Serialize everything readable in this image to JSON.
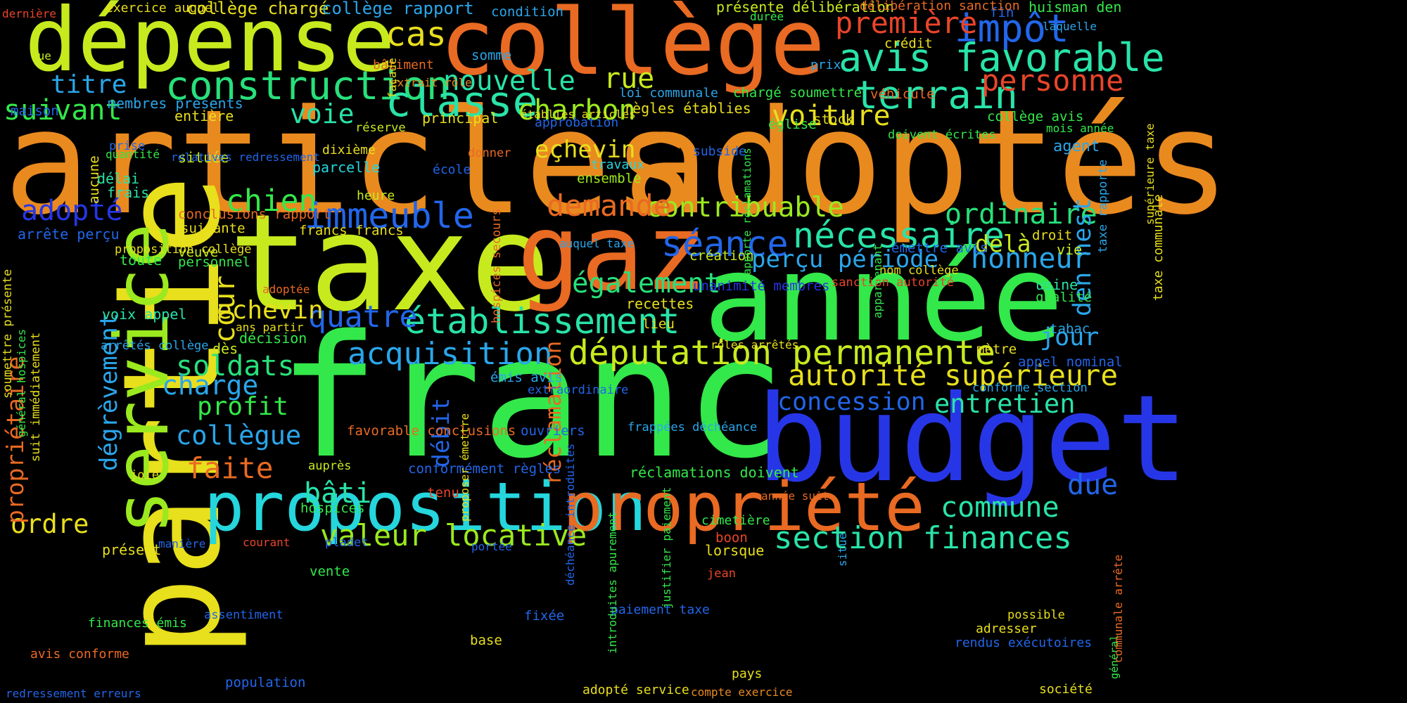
{
  "palette": {
    "orange": "#e98a1f",
    "deep_orange": "#e96a22",
    "red_orange": "#e9452a",
    "yellow": "#e8df1d",
    "yellow_green": "#c7ea1e",
    "lime": "#9be91f",
    "green": "#33e84a",
    "spring": "#28e07a",
    "teal": "#29e3a8",
    "cyan": "#25d6dd",
    "sky": "#2aa6ea",
    "blue": "#2266ea",
    "deep_blue": "#2636e6"
  },
  "words": [
    {
      "text": "franc",
      "color": "green"
    },
    {
      "text": "articles",
      "color": "orange"
    },
    {
      "text": "adoptés",
      "color": "orange"
    },
    {
      "text": "taxe",
      "color": "yellow_green"
    },
    {
      "text": "année",
      "color": "green"
    },
    {
      "text": "partie",
      "color": "yellow"
    },
    {
      "text": "budget",
      "color": "deep_blue"
    },
    {
      "text": "gaz",
      "color": "deep_orange"
    },
    {
      "text": "collège",
      "color": "deep_orange"
    },
    {
      "text": "dépense",
      "color": "yellow_green"
    },
    {
      "text": "service",
      "color": "lime"
    },
    {
      "text": "proposition",
      "color": "cyan"
    },
    {
      "text": "propriété",
      "color": "deep_orange"
    },
    {
      "text": "construction",
      "color": "spring"
    },
    {
      "text": "terrain",
      "color": "teal"
    },
    {
      "text": "classe",
      "color": "teal"
    },
    {
      "text": "avis favorable",
      "color": "teal"
    },
    {
      "text": "impôt",
      "color": "blue"
    },
    {
      "text": "députation permanente",
      "color": "yellow_green"
    },
    {
      "text": "établissement",
      "color": "teal"
    },
    {
      "text": "nécessaire",
      "color": "teal"
    },
    {
      "text": "séance",
      "color": "blue"
    },
    {
      "text": "immeuble",
      "color": "blue"
    },
    {
      "text": "acquisition",
      "color": "sky"
    },
    {
      "text": "section finances",
      "color": "teal"
    },
    {
      "text": "valeur locative",
      "color": "lime"
    },
    {
      "text": "autorité supérieure",
      "color": "yellow"
    },
    {
      "text": "contribuable",
      "color": "lime"
    },
    {
      "text": "demande",
      "color": "deep_orange"
    },
    {
      "text": "première",
      "color": "red_orange"
    },
    {
      "text": "personne",
      "color": "red_orange"
    },
    {
      "text": "voiture",
      "color": "yellow"
    },
    {
      "text": "charbon",
      "color": "lime"
    },
    {
      "text": "nouvelle",
      "color": "teal"
    },
    {
      "text": "rue",
      "color": "yellow_green"
    },
    {
      "text": "cas",
      "color": "yellow"
    },
    {
      "text": "suivant",
      "color": "green"
    },
    {
      "text": "titre",
      "color": "sky"
    },
    {
      "text": "voie",
      "color": "teal"
    },
    {
      "text": "adopté",
      "color": "deep_blue"
    },
    {
      "text": "chien",
      "color": "green"
    },
    {
      "text": "ordinaire",
      "color": "spring"
    },
    {
      "text": "honneur",
      "color": "sky"
    },
    {
      "text": "perçu période",
      "color": "sky"
    },
    {
      "text": "également",
      "color": "spring"
    },
    {
      "text": "quatre",
      "color": "blue"
    },
    {
      "text": "echevin",
      "color": "yellow"
    },
    {
      "text": "soldats",
      "color": "spring"
    },
    {
      "text": "charge",
      "color": "sky"
    },
    {
      "text": "profit",
      "color": "green"
    },
    {
      "text": "collègue",
      "color": "sky"
    },
    {
      "text": "faite",
      "color": "deep_orange"
    },
    {
      "text": "bâti",
      "color": "teal"
    },
    {
      "text": "commune",
      "color": "teal"
    },
    {
      "text": "concession",
      "color": "blue"
    },
    {
      "text": "entretien",
      "color": "teal"
    },
    {
      "text": "jour",
      "color": "sky"
    },
    {
      "text": "due",
      "color": "blue"
    },
    {
      "text": "ordre",
      "color": "yellow"
    },
    {
      "text": "cour",
      "color": "yellow"
    },
    {
      "text": "dégrèvement",
      "color": "sky"
    },
    {
      "text": "propriétaire",
      "color": "deep_orange"
    },
    {
      "text": "den nest",
      "color": "sky"
    },
    {
      "text": "réclamation",
      "color": "deep_orange"
    },
    {
      "text": "débit",
      "color": "blue"
    },
    {
      "text": "delà",
      "color": "yellow_green"
    },
    {
      "text": "eçhevin",
      "color": "yellow"
    },
    {
      "text": "collège chargé",
      "color": "yellow"
    },
    {
      "text": "collège rapport",
      "color": "sky"
    },
    {
      "text": "membres présents",
      "color": "sky"
    },
    {
      "text": "entière",
      "color": "yellow"
    },
    {
      "text": "règles établies",
      "color": "yellow"
    },
    {
      "text": "loi communale",
      "color": "sky"
    },
    {
      "text": "principal",
      "color": "yellow"
    },
    {
      "text": "approbation",
      "color": "blue"
    },
    {
      "text": "conclusions rapport",
      "color": "deep_orange"
    },
    {
      "text": "francs francs",
      "color": "yellow"
    },
    {
      "text": "arrête perçu",
      "color": "blue"
    },
    {
      "text": "parcelle",
      "color": "cyan"
    },
    {
      "text": "travaux",
      "color": "cyan"
    },
    {
      "text": "ensemble",
      "color": "lime"
    },
    {
      "text": "école",
      "color": "blue"
    },
    {
      "text": "dixième",
      "color": "yellow"
    },
    {
      "text": "délai",
      "color": "teal"
    },
    {
      "text": "frais",
      "color": "teal"
    },
    {
      "text": "située",
      "color": "yellow_green"
    },
    {
      "text": "quantité",
      "color": "green"
    },
    {
      "text": "heure",
      "color": "yellow_green"
    },
    {
      "text": "suivante",
      "color": "yellow"
    },
    {
      "text": "toute",
      "color": "green"
    },
    {
      "text": "veuve",
      "color": "yellow_green"
    },
    {
      "text": "personnel",
      "color": "green"
    },
    {
      "text": "voix appel",
      "color": "teal"
    },
    {
      "text": "décision",
      "color": "green"
    },
    {
      "text": "dès",
      "color": "yellow_green"
    },
    {
      "text": "recettes",
      "color": "yellow"
    },
    {
      "text": "lieu",
      "color": "yellow"
    },
    {
      "text": "création",
      "color": "yellow_green"
    },
    {
      "text": "usine",
      "color": "teal"
    },
    {
      "text": "qualité",
      "color": "green"
    },
    {
      "text": "tabac",
      "color": "sky"
    },
    {
      "text": "mètre",
      "color": "yellow"
    },
    {
      "text": "appel nominal",
      "color": "blue"
    },
    {
      "text": "conforme section",
      "color": "sky"
    },
    {
      "text": "émettre avis",
      "color": "blue"
    },
    {
      "text": "vie",
      "color": "yellow_green"
    },
    {
      "text": "droit",
      "color": "yellow"
    },
    {
      "text": "agent",
      "color": "sky"
    },
    {
      "text": "mois année",
      "color": "green"
    },
    {
      "text": "crédit",
      "color": "yellow"
    },
    {
      "text": "huisman den",
      "color": "green"
    },
    {
      "text": "fin",
      "color": "blue"
    },
    {
      "text": "laquelle",
      "color": "sky"
    },
    {
      "text": "stock",
      "color": "yellow"
    },
    {
      "text": "église",
      "color": "green"
    },
    {
      "text": "véhicule",
      "color": "deep_orange"
    },
    {
      "text": "prix",
      "color": "sky"
    },
    {
      "text": "collège avis",
      "color": "green"
    },
    {
      "text": "doivent écrites",
      "color": "green"
    },
    {
      "text": "chargé soumettre",
      "color": "green"
    },
    {
      "text": "établies articles",
      "color": "yellow"
    },
    {
      "text": "subside",
      "color": "blue"
    },
    {
      "text": "somme",
      "color": "sky"
    },
    {
      "text": "bâtiment",
      "color": "deep_orange"
    },
    {
      "text": "extrait rôle",
      "color": "orange"
    },
    {
      "text": "condition",
      "color": "sky"
    },
    {
      "text": "exercice auquel",
      "color": "yellow"
    },
    {
      "text": "dernière",
      "color": "red_orange"
    },
    {
      "text": "présente délibération",
      "color": "yellow_green"
    },
    {
      "text": "délibération sanction",
      "color": "deep_orange"
    },
    {
      "text": "durée",
      "color": "green"
    },
    {
      "text": "vue",
      "color": "yellow_green"
    },
    {
      "text": "maison",
      "color": "blue"
    },
    {
      "text": "prise",
      "color": "blue"
    },
    {
      "text": "relatives redressement",
      "color": "blue"
    },
    {
      "text": "réserve",
      "color": "yellow_green"
    },
    {
      "text": "aucune",
      "color": "yellow"
    },
    {
      "text": "donner",
      "color": "deep_orange"
    },
    {
      "text": "proposition collège",
      "color": "yellow"
    },
    {
      "text": "auquel taxe",
      "color": "sky"
    },
    {
      "text": "adoptée",
      "color": "deep_orange"
    },
    {
      "text": "ans partir",
      "color": "yellow"
    },
    {
      "text": "arrêtés collège",
      "color": "sky"
    },
    {
      "text": "unanimité membres",
      "color": "deep_blue"
    },
    {
      "text": "sanction autorité",
      "color": "red_orange"
    },
    {
      "text": "nom collège",
      "color": "yellow"
    },
    {
      "text": "rôles arrêtés",
      "color": "yellow"
    },
    {
      "text": "émis avis",
      "color": "sky"
    },
    {
      "text": "extraordinaire",
      "color": "blue"
    },
    {
      "text": "favorable conclusions",
      "color": "deep_orange"
    },
    {
      "text": "ouvriers",
      "color": "blue"
    },
    {
      "text": "frappées déchéance",
      "color": "sky"
    },
    {
      "text": "réclamations doivent",
      "color": "green"
    },
    {
      "text": "conformément règles",
      "color": "blue"
    },
    {
      "text": "auprès",
      "color": "yellow_green"
    },
    {
      "text": "tenu",
      "color": "red_orange"
    },
    {
      "text": "hospices",
      "color": "green"
    },
    {
      "text": "joie",
      "color": "yellow"
    },
    {
      "text": "présent",
      "color": "yellow"
    },
    {
      "text": "manière",
      "color": "blue"
    },
    {
      "text": "courant",
      "color": "red_orange"
    },
    {
      "text": "pladet",
      "color": "blue"
    },
    {
      "text": "portée",
      "color": "blue"
    },
    {
      "text": "vente",
      "color": "green"
    },
    {
      "text": "année suit",
      "color": "deep_orange"
    },
    {
      "text": "cimetière",
      "color": "green"
    },
    {
      "text": "boon",
      "color": "red_orange"
    },
    {
      "text": "lorsque",
      "color": "yellow"
    },
    {
      "text": "jean",
      "color": "red_orange"
    },
    {
      "text": "finances émis",
      "color": "green"
    },
    {
      "text": "assentiment",
      "color": "blue"
    },
    {
      "text": "fixée",
      "color": "blue"
    },
    {
      "text": "paiement taxe",
      "color": "blue"
    },
    {
      "text": "base",
      "color": "yellow"
    },
    {
      "text": "avis conforme",
      "color": "deep_orange"
    },
    {
      "text": "population",
      "color": "blue"
    },
    {
      "text": "redressement erreurs",
      "color": "blue"
    },
    {
      "text": "pays",
      "color": "yellow"
    },
    {
      "text": "compte exercice",
      "color": "orange"
    },
    {
      "text": "adopté service",
      "color": "yellow"
    },
    {
      "text": "rendus exécutoires",
      "color": "blue"
    },
    {
      "text": "société",
      "color": "yellow"
    },
    {
      "text": "adresser",
      "color": "yellow"
    },
    {
      "text": "possible",
      "color": "yellow"
    },
    {
      "text": "soumettre présente",
      "color": "yellow"
    },
    {
      "text": "général hospices",
      "color": "green"
    },
    {
      "text": "suit immédiatement",
      "color": "yellow"
    },
    {
      "text": "façade",
      "color": "yellow"
    },
    {
      "text": "hospices secours",
      "color": "deep_orange"
    },
    {
      "text": "rapporte réclamations",
      "color": "green"
    },
    {
      "text": "supérieure taxe",
      "color": "yellow"
    },
    {
      "text": "taxe communale",
      "color": "yellow"
    },
    {
      "text": "taxe rapporte",
      "color": "sky"
    },
    {
      "text": "appartenant",
      "color": "green"
    },
    {
      "text": "proposer émettre",
      "color": "yellow"
    },
    {
      "text": "déchéance introduites",
      "color": "blue"
    },
    {
      "text": "introduites apurement",
      "color": "green"
    },
    {
      "text": "justifier paiement",
      "color": "green"
    },
    {
      "text": "situé",
      "color": "sky"
    },
    {
      "text": "général",
      "color": "green"
    },
    {
      "text": "communale arrête",
      "color": "deep_orange"
    }
  ]
}
